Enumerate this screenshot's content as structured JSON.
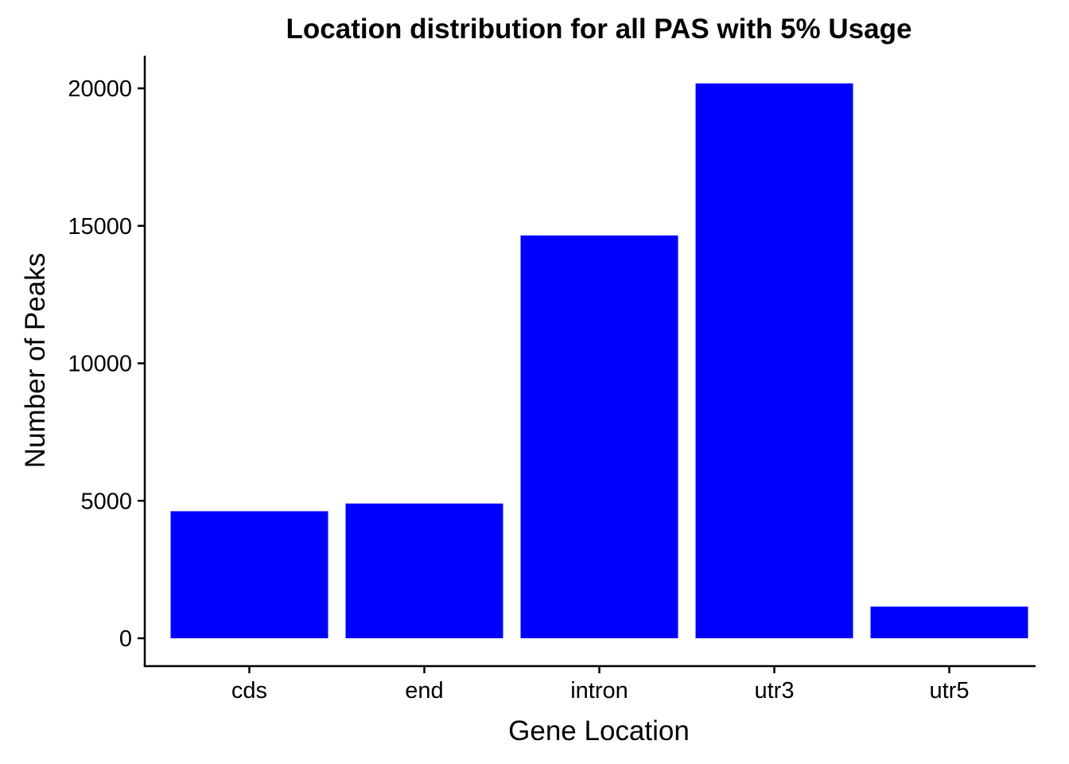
{
  "chart_data": {
    "type": "bar",
    "title": "Location distribution for all PAS with 5% Usage",
    "xlabel": "Gene Location",
    "ylabel": "Number of Peaks",
    "categories": [
      "cds",
      "end",
      "intron",
      "utr3",
      "utr5"
    ],
    "values": [
      4620,
      4900,
      14650,
      20180,
      1150
    ],
    "ylim": [
      -1000,
      21200
    ],
    "yticks": [
      0,
      5000,
      10000,
      15000,
      20000
    ],
    "ytick_labels": [
      "0",
      "5000",
      "10000",
      "15000",
      "20000"
    ],
    "bar_color": "#0000ff",
    "grid": false,
    "legend": "none"
  }
}
